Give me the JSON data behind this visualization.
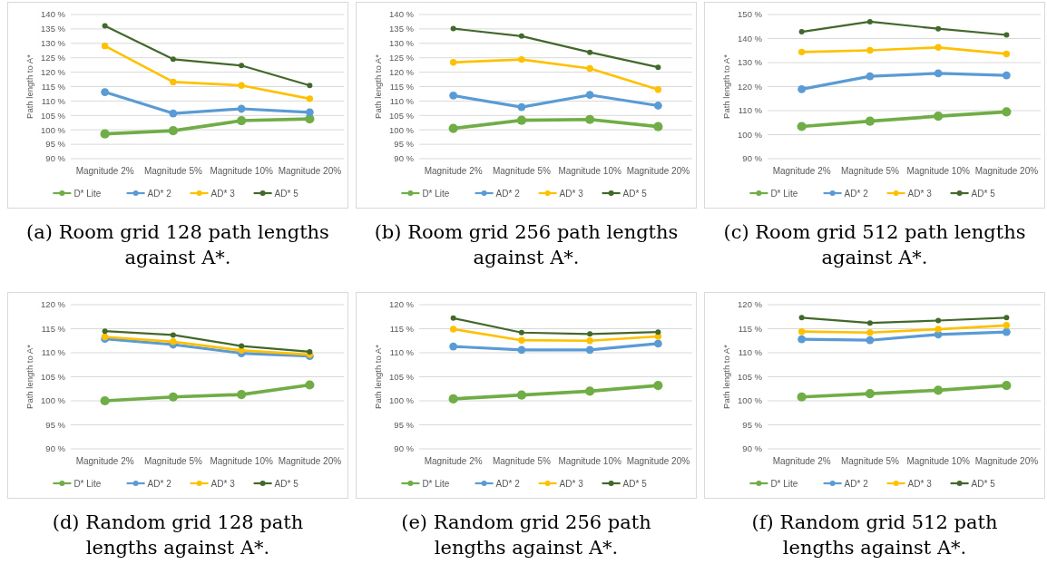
{
  "chart_data": [
    {
      "type": "line",
      "title": "(a) Room grid 128 path lengths against A*.",
      "ylabel": "Path length to A*",
      "categories": [
        "Magnitude 2%",
        "Magnitude 5%",
        "Magnitude 10%",
        "Magnitude 20%"
      ],
      "ylim": [
        90,
        140
      ],
      "yticks": [
        {
          "value": 90,
          "label": "90 %"
        },
        {
          "value": 95,
          "label": "95 %"
        },
        {
          "value": 100,
          "label": "100 %"
        },
        {
          "value": 105,
          "label": "105 %"
        },
        {
          "value": 110,
          "label": "110 %"
        },
        {
          "value": 115,
          "label": "115 %"
        },
        {
          "value": 120,
          "label": "120 %"
        },
        {
          "value": 125,
          "label": "125 %"
        },
        {
          "value": 130,
          "label": "130 %"
        },
        {
          "value": 135,
          "label": "135 %"
        },
        {
          "value": 140,
          "label": "140 %"
        }
      ],
      "grid": "y",
      "legend": "bottom",
      "marker": "circle",
      "series": [
        {
          "name": "D* Lite",
          "color": "#70ad47",
          "values": [
            98.6,
            99.7,
            103.2,
            103.8
          ]
        },
        {
          "name": "AD* 2",
          "color": "#5b9bd5",
          "values": [
            113.1,
            105.7,
            107.3,
            106.1
          ]
        },
        {
          "name": "AD* 3",
          "color": "#ffc000",
          "values": [
            129.1,
            116.6,
            115.4,
            110.8
          ]
        },
        {
          "name": "AD* 5",
          "color": "#43682b",
          "values": [
            136.1,
            124.5,
            122.3,
            115.4
          ]
        }
      ]
    },
    {
      "type": "line",
      "title": "(b) Room grid 256 path lengths against A*.",
      "ylabel": "Path length to A*",
      "categories": [
        "Magnitude 2%",
        "Magnitude 5%",
        "Magnitude 10%",
        "Magnitude 20%"
      ],
      "ylim": [
        90,
        140
      ],
      "yticks": [
        {
          "value": 90,
          "label": "90 %"
        },
        {
          "value": 95,
          "label": "95 %"
        },
        {
          "value": 100,
          "label": "100 %"
        },
        {
          "value": 105,
          "label": "105 %"
        },
        {
          "value": 110,
          "label": "110 %"
        },
        {
          "value": 115,
          "label": "115 %"
        },
        {
          "value": 120,
          "label": "120 %"
        },
        {
          "value": 125,
          "label": "125 %"
        },
        {
          "value": 130,
          "label": "130 %"
        },
        {
          "value": 135,
          "label": "135 %"
        },
        {
          "value": 140,
          "label": "140 %"
        }
      ],
      "grid": "y",
      "legend": "bottom",
      "marker": "circle",
      "series": [
        {
          "name": "D* Lite",
          "color": "#70ad47",
          "values": [
            100.5,
            103.3,
            103.6,
            101.1
          ]
        },
        {
          "name": "AD* 2",
          "color": "#5b9bd5",
          "values": [
            111.9,
            107.9,
            112.1,
            108.4
          ]
        },
        {
          "name": "AD* 3",
          "color": "#ffc000",
          "values": [
            123.4,
            124.4,
            121.3,
            114.0
          ]
        },
        {
          "name": "AD* 5",
          "color": "#43682b",
          "values": [
            135.1,
            132.5,
            126.9,
            121.7
          ]
        }
      ]
    },
    {
      "type": "line",
      "title": "(c) Room grid 512 path lengths against A*.",
      "ylabel": "Path length to A*",
      "categories": [
        "Magnitude 2%",
        "Magnitude 5%",
        "Magnitude 10%",
        "Magnitude 20%"
      ],
      "ylim": [
        90,
        150
      ],
      "yticks": [
        {
          "value": 90,
          "label": "90 %"
        },
        {
          "value": 100,
          "label": "100 %"
        },
        {
          "value": 110,
          "label": "110 %"
        },
        {
          "value": 120,
          "label": "120 %"
        },
        {
          "value": 130,
          "label": "130 %"
        },
        {
          "value": 140,
          "label": "140 %"
        },
        {
          "value": 150,
          "label": "150 %"
        }
      ],
      "grid": "y",
      "legend": "bottom",
      "marker": "circle",
      "series": [
        {
          "name": "D* Lite",
          "color": "#70ad47",
          "values": [
            103.4,
            105.6,
            107.7,
            109.5
          ]
        },
        {
          "name": "AD* 2",
          "color": "#5b9bd5",
          "values": [
            118.9,
            124.3,
            125.5,
            124.7
          ]
        },
        {
          "name": "AD* 3",
          "color": "#ffc000",
          "values": [
            134.4,
            135.1,
            136.3,
            133.6
          ]
        },
        {
          "name": "AD* 5",
          "color": "#43682b",
          "values": [
            142.8,
            147.0,
            144.1,
            141.5
          ]
        }
      ]
    },
    {
      "type": "line",
      "title": "(d) Random grid 128 path lengths against A*.",
      "ylabel": "Path length to A*",
      "categories": [
        "Magnitude 2%",
        "Magnitude 5%",
        "Magnitude 10%",
        "Magnitude 20%"
      ],
      "ylim": [
        90,
        120
      ],
      "yticks": [
        {
          "value": 90,
          "label": "90 %"
        },
        {
          "value": 95,
          "label": "95 %"
        },
        {
          "value": 100,
          "label": "100 %"
        },
        {
          "value": 105,
          "label": "105 %"
        },
        {
          "value": 110,
          "label": "110 %"
        },
        {
          "value": 115,
          "label": "115 %"
        },
        {
          "value": 120,
          "label": "120 %"
        }
      ],
      "grid": "y",
      "legend": "bottom",
      "marker": "circle",
      "series": [
        {
          "name": "D* Lite",
          "color": "#70ad47",
          "values": [
            100.0,
            100.8,
            101.3,
            103.3
          ]
        },
        {
          "name": "AD* 2",
          "color": "#5b9bd5",
          "values": [
            112.9,
            111.7,
            109.9,
            109.3
          ]
        },
        {
          "name": "AD* 3",
          "color": "#ffc000",
          "values": [
            113.3,
            112.3,
            110.5,
            109.6
          ]
        },
        {
          "name": "AD* 5",
          "color": "#43682b",
          "values": [
            114.5,
            113.7,
            111.4,
            110.2
          ]
        }
      ]
    },
    {
      "type": "line",
      "title": "(e) Random grid 256 path lengths against A*.",
      "ylabel": "Path length to A*",
      "categories": [
        "Magnitude 2%",
        "Magnitude 5%",
        "Magnitude 10%",
        "Magnitude 20%"
      ],
      "ylim": [
        90,
        120
      ],
      "yticks": [
        {
          "value": 90,
          "label": "90 %"
        },
        {
          "value": 95,
          "label": "95 %"
        },
        {
          "value": 100,
          "label": "100 %"
        },
        {
          "value": 105,
          "label": "105 %"
        },
        {
          "value": 110,
          "label": "110 %"
        },
        {
          "value": 115,
          "label": "115 %"
        },
        {
          "value": 120,
          "label": "120 %"
        }
      ],
      "grid": "y",
      "legend": "bottom",
      "marker": "circle",
      "series": [
        {
          "name": "D* Lite",
          "color": "#70ad47",
          "values": [
            100.4,
            101.2,
            102.0,
            103.2
          ]
        },
        {
          "name": "AD* 2",
          "color": "#5b9bd5",
          "values": [
            111.3,
            110.6,
            110.6,
            111.9
          ]
        },
        {
          "name": "AD* 3",
          "color": "#ffc000",
          "values": [
            114.9,
            112.6,
            112.5,
            113.4
          ]
        },
        {
          "name": "AD* 5",
          "color": "#43682b",
          "values": [
            117.2,
            114.2,
            113.9,
            114.3
          ]
        }
      ]
    },
    {
      "type": "line",
      "title": "(f) Random grid 512 path lengths against A*.",
      "ylabel": "Path length to A*",
      "categories": [
        "Magnitude 2%",
        "Magnitude 5%",
        "Magnitude 10%",
        "Magnitude 20%"
      ],
      "ylim": [
        90,
        120
      ],
      "yticks": [
        {
          "value": 90,
          "label": "90 %"
        },
        {
          "value": 95,
          "label": "95 %"
        },
        {
          "value": 100,
          "label": "100 %"
        },
        {
          "value": 105,
          "label": "105 %"
        },
        {
          "value": 110,
          "label": "110 %"
        },
        {
          "value": 115,
          "label": "115 %"
        },
        {
          "value": 120,
          "label": "120 %"
        }
      ],
      "grid": "y",
      "legend": "bottom",
      "marker": "circle",
      "series": [
        {
          "name": "D* Lite",
          "color": "#70ad47",
          "values": [
            100.8,
            101.5,
            102.2,
            103.2
          ]
        },
        {
          "name": "AD* 2",
          "color": "#5b9bd5",
          "values": [
            112.8,
            112.6,
            113.8,
            114.3
          ]
        },
        {
          "name": "AD* 3",
          "color": "#ffc000",
          "values": [
            114.4,
            114.2,
            114.9,
            115.7
          ]
        },
        {
          "name": "AD* 5",
          "color": "#43682b",
          "values": [
            117.3,
            116.2,
            116.7,
            117.3
          ]
        }
      ]
    }
  ]
}
